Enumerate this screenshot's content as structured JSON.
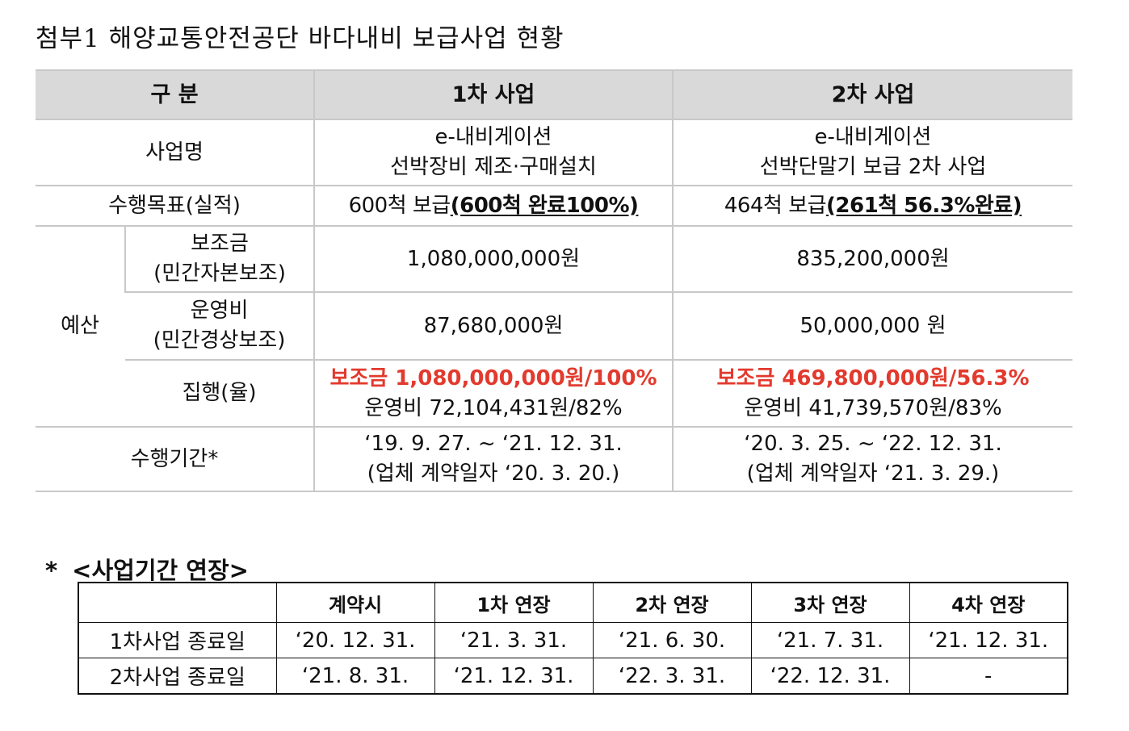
{
  "title": "첨부1  해양교통안전공단  바다내비  보급사업  현황",
  "main_table": {
    "headers": [
      "구  분",
      "1차  사업",
      "2차  사업"
    ],
    "rows": {
      "project_name": {
        "label": "사업명",
        "first": [
          "e-내비게이션",
          "선박장비  제조·구매설치"
        ],
        "second": [
          "e-내비게이션",
          "선박단말기  보급  2차  사업"
        ]
      },
      "target": {
        "label": "수행목표(실적)",
        "first_plain": "600척  보급",
        "first_bold": "(600척  완료100%)",
        "second_plain": "464척  보급",
        "second_bold": "(261척  56.3%완료)"
      },
      "budget_label": "예산",
      "subsidy": {
        "label": [
          "보조금",
          "(민간자본보조)"
        ],
        "first": "1,080,000,000원",
        "second": "835,200,000원"
      },
      "operating": {
        "label": [
          "운영비",
          "(민간경상보조)"
        ],
        "first": "87,680,000원",
        "second": "50,000,000  원"
      },
      "execution": {
        "label": "집행(율)",
        "first_red": "보조금  1,080,000,000원/100%",
        "first_line2": "운영비  72,104,431원/82%",
        "second_red": "보조금  469,800,000원/56.3%",
        "second_line2": "운영비  41,739,570원/83%"
      },
      "period": {
        "label": "수행기간*",
        "first": [
          "‘19.  9.  27.  ~  ‘21.  12.  31.",
          "(업체  계약일자  ‘20.  3.  20.)"
        ],
        "second": [
          "‘20.  3.  25.  ~  ‘22.  12.  31.",
          "(업체  계약일자  ‘21.  3.  29.)"
        ]
      }
    }
  },
  "extension": {
    "star": "*",
    "title": "<사업기간  연장>",
    "headers": [
      "",
      "계약시",
      "1차  연장",
      "2차  연장",
      "3차  연장",
      "4차  연장"
    ],
    "rows": [
      [
        "1차사업  종료일",
        "‘20.  12.  31.",
        "‘21.  3.  31.",
        "‘21.  6.  30.",
        "‘21.  7.  31.",
        "‘21.  12.  31."
      ],
      [
        "2차사업  종료일",
        "‘21.  8.  31.",
        "‘21.  12.  31.",
        "‘22.  3.  31.",
        "‘22.  12.  31.",
        "-"
      ]
    ]
  },
  "colors": {
    "header_bg": "#d9d9d9",
    "highlight_red": "#e23a2e",
    "grid": "#c8c8c8"
  }
}
